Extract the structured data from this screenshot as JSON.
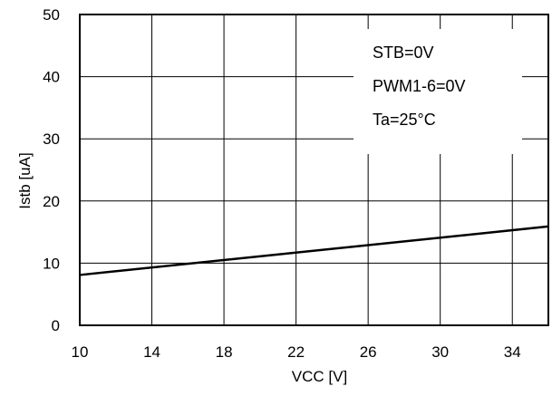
{
  "chart_data": {
    "type": "line",
    "title": "",
    "xlabel": "VCC [V]",
    "ylabel": "Istb [uA]",
    "xlim": [
      10,
      36
    ],
    "ylim": [
      0,
      50
    ],
    "x_ticks": [
      "10",
      "14",
      "18",
      "22",
      "26",
      "30",
      "34"
    ],
    "y_ticks": [
      "0",
      "10",
      "20",
      "30",
      "40",
      "50"
    ],
    "x_tick_values": [
      10,
      14,
      18,
      22,
      26,
      30,
      34
    ],
    "y_tick_values": [
      0,
      10,
      20,
      30,
      40,
      50
    ],
    "grid": true,
    "series": [
      {
        "x": [
          10,
          36
        ],
        "y": [
          8.1,
          15.9
        ]
      }
    ],
    "annotations": [
      "STB=0V",
      "PWM1-6=0V",
      "Ta=25°C"
    ]
  }
}
